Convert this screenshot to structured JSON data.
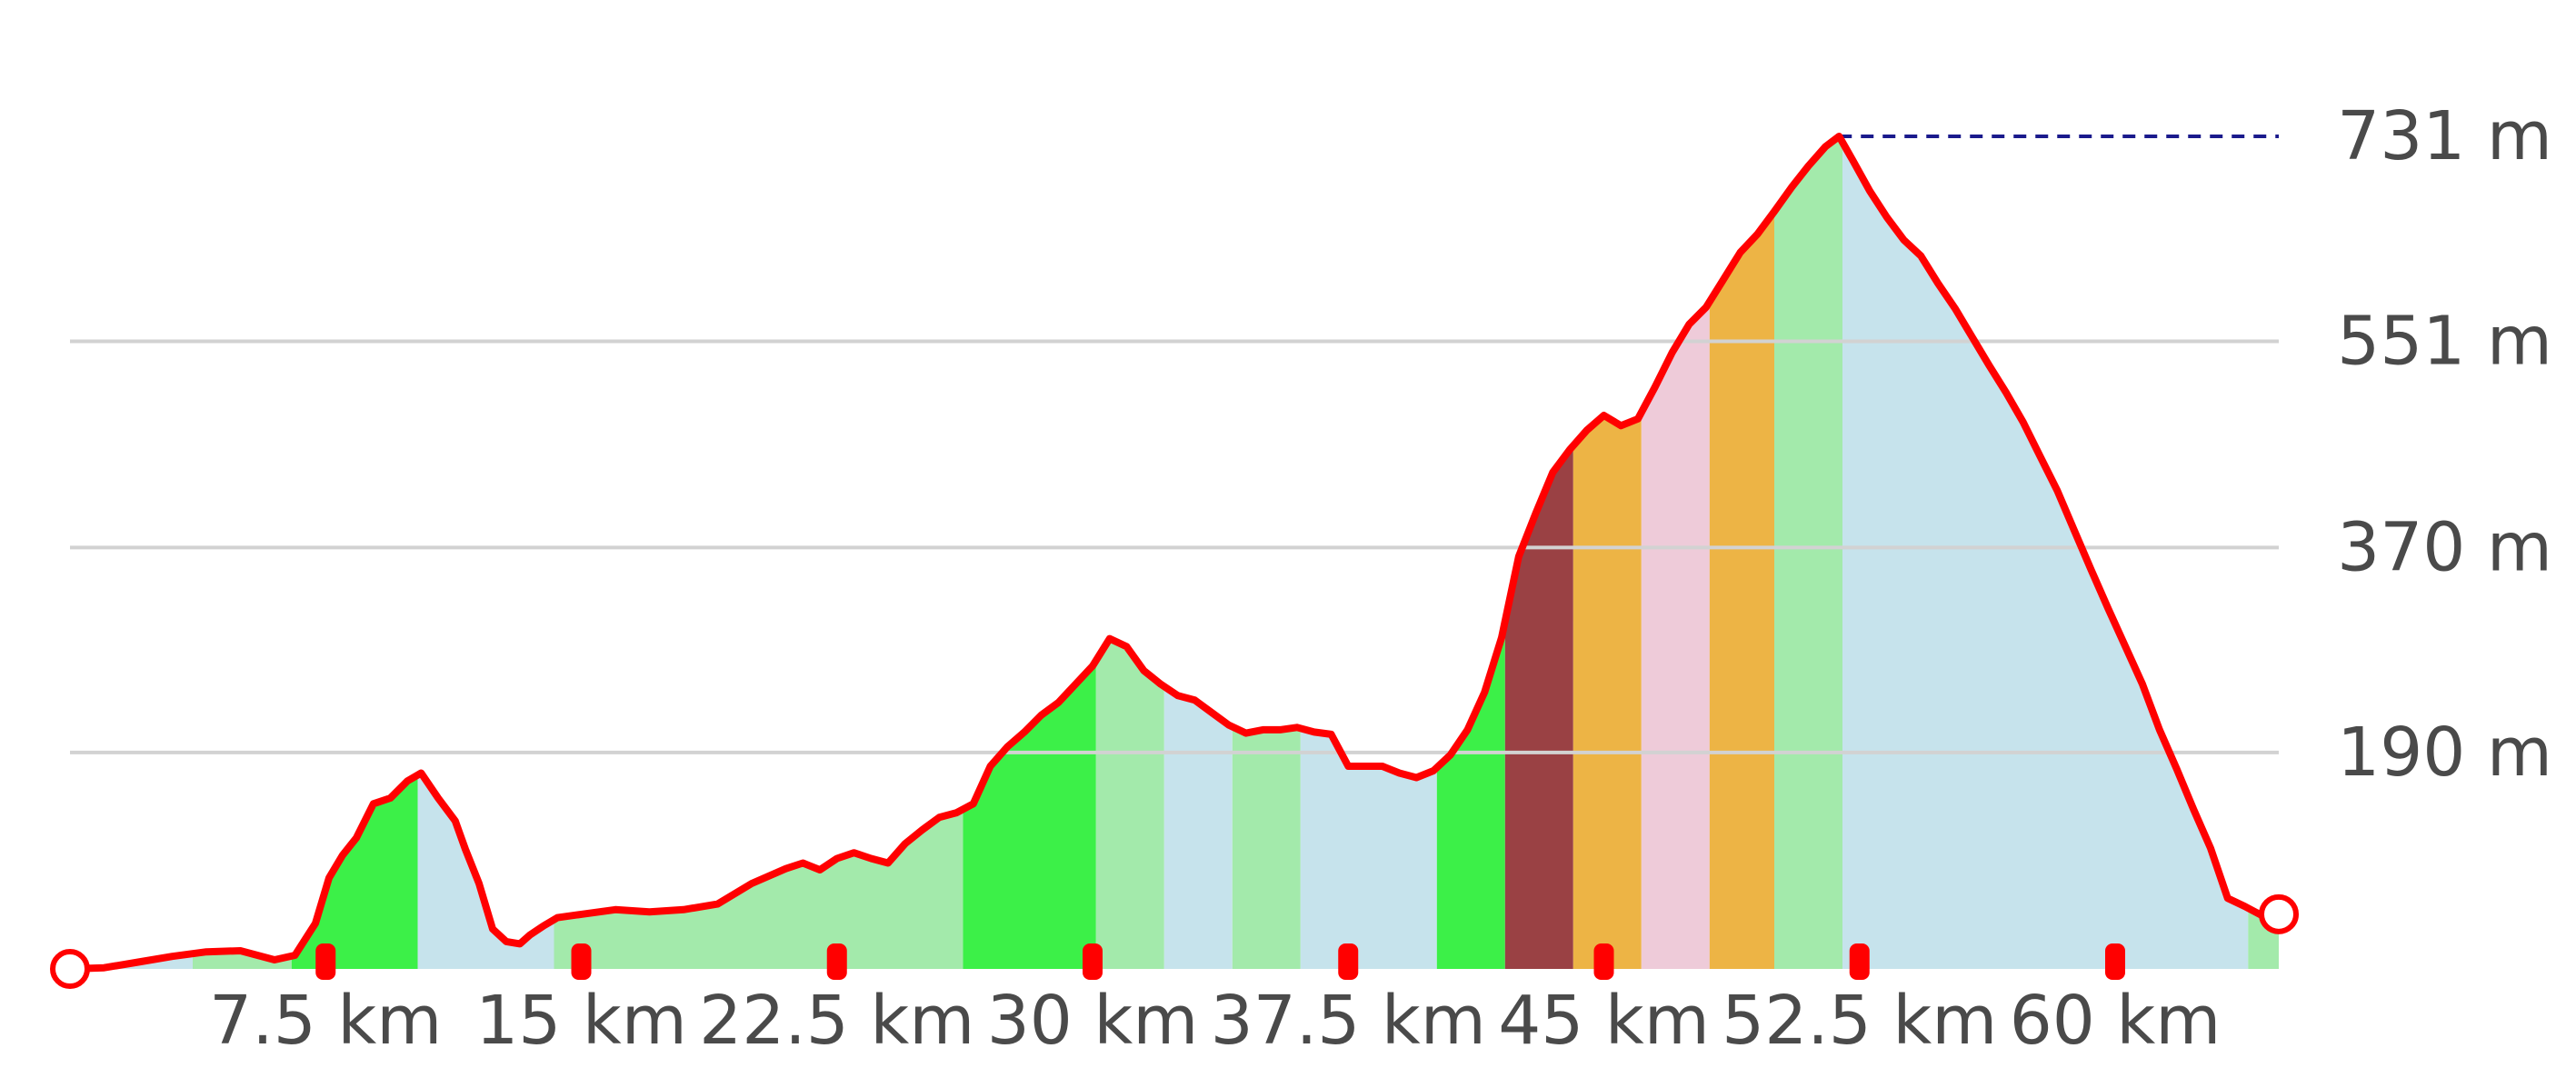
{
  "chart_data": {
    "type": "area",
    "xlabel": "",
    "ylabel": "",
    "x_unit": "km",
    "y_unit": "m",
    "xlim": [
      0,
      64.8
    ],
    "ylim": [
      0,
      731
    ],
    "x_ticks": [
      {
        "value": 7.5,
        "label": "7.5 km"
      },
      {
        "value": 15,
        "label": "15 km"
      },
      {
        "value": 22.5,
        "label": "22.5 km"
      },
      {
        "value": 30,
        "label": "30 km"
      },
      {
        "value": 37.5,
        "label": "37.5 km"
      },
      {
        "value": 45,
        "label": "45 km"
      },
      {
        "value": 52.5,
        "label": "52.5 km"
      },
      {
        "value": 60,
        "label": "60 km"
      }
    ],
    "y_ticks": [
      {
        "value": 190,
        "label": "190 m"
      },
      {
        "value": 370,
        "label": "370 m"
      },
      {
        "value": 551,
        "label": "551 m"
      },
      {
        "value": 731,
        "label": "731 m"
      }
    ],
    "max_elevation": {
      "value": 731,
      "label": "731 m",
      "distance": 51.9
    },
    "grid": true,
    "start_marker": {
      "distance": 0,
      "elevation": 0
    },
    "end_marker": {
      "distance": 64.8,
      "elevation": 48
    },
    "segment_colors": {
      "descent": "#c6e3ec",
      "gentle_climb": "#a3eaab",
      "moderate_climb": "#3cf048",
      "steep_climb": "#edb445",
      "very_steep_climb": "#9a4144",
      "pink": "#eecbd9"
    },
    "segments": [
      {
        "from": 0,
        "to": 3.6,
        "class": "descent"
      },
      {
        "from": 3.6,
        "to": 6.5,
        "class": "gentle_climb"
      },
      {
        "from": 6.5,
        "to": 10.2,
        "class": "moderate_climb"
      },
      {
        "from": 10.2,
        "to": 14.2,
        "class": "descent"
      },
      {
        "from": 14.2,
        "to": 26.2,
        "class": "gentle_climb"
      },
      {
        "from": 26.2,
        "to": 30.1,
        "class": "moderate_climb"
      },
      {
        "from": 30.1,
        "to": 32.1,
        "class": "gentle_climb"
      },
      {
        "from": 32.1,
        "to": 34.1,
        "class": "descent"
      },
      {
        "from": 34.1,
        "to": 36.1,
        "class": "gentle_climb"
      },
      {
        "from": 36.1,
        "to": 40.1,
        "class": "descent"
      },
      {
        "from": 40.1,
        "to": 42.1,
        "class": "moderate_climb"
      },
      {
        "from": 42.1,
        "to": 44.1,
        "class": "very_steep_climb"
      },
      {
        "from": 44.1,
        "to": 46.1,
        "class": "steep_climb"
      },
      {
        "from": 46.1,
        "to": 48.1,
        "class": "pink"
      },
      {
        "from": 48.1,
        "to": 50.0,
        "class": "steep_climb"
      },
      {
        "from": 50.0,
        "to": 52.0,
        "class": "gentle_climb"
      },
      {
        "from": 52.0,
        "to": 63.9,
        "class": "descent"
      },
      {
        "from": 63.9,
        "to": 64.8,
        "class": "gentle_climb"
      }
    ],
    "km_markers": [
      7.5,
      15,
      22.5,
      30,
      37.5,
      45,
      52.5,
      60
    ],
    "series": [
      {
        "x": [
          0,
          1.0,
          2.0,
          3.0,
          4.0,
          5.0,
          6.0,
          6.6,
          7.2,
          7.6,
          8.0,
          8.4,
          8.9,
          9.4,
          9.9,
          10.3,
          10.8,
          11.3,
          11.6,
          12.0,
          12.4,
          12.8,
          13.2,
          13.5,
          13.9,
          14.3,
          15.0,
          16.0,
          17.0,
          18.0,
          19.0,
          20.0,
          21.0,
          21.5,
          22.0,
          22.5,
          23.0,
          23.5,
          24.0,
          24.5,
          25.0,
          25.5,
          26.0,
          26.5,
          27.0,
          27.5,
          28.0,
          28.5,
          29.0,
          29.5,
          30.0,
          30.5,
          31.0,
          31.5,
          32.0,
          32.5,
          33.0,
          33.5,
          34.0,
          34.5,
          35.0,
          35.5,
          36.0,
          36.5,
          37.0,
          37.5,
          38.0,
          38.5,
          39.0,
          39.5,
          40.0,
          40.5,
          41.0,
          41.5,
          42.0,
          42.5,
          43.0,
          43.5,
          44.0,
          44.5,
          45.0,
          45.5,
          46.0,
          46.5,
          47.0,
          47.5,
          48.0,
          48.5,
          49.0,
          49.5,
          50.0,
          50.5,
          51.0,
          51.5,
          51.9,
          52.3,
          52.8,
          53.3,
          53.8,
          54.3,
          54.8,
          55.3,
          55.8,
          56.3,
          56.8,
          57.3,
          57.8,
          58.3,
          58.8,
          59.3,
          59.8,
          60.3,
          60.8,
          61.3,
          61.8,
          62.3,
          62.8,
          63.3,
          63.8,
          64.3,
          64.8
        ],
        "y": [
          0,
          1,
          6,
          11,
          15,
          16,
          8,
          12,
          40,
          80,
          100,
          115,
          145,
          150,
          165,
          172,
          150,
          130,
          105,
          75,
          35,
          24,
          22,
          30,
          38,
          45,
          48,
          52,
          50,
          52,
          57,
          75,
          88,
          93,
          87,
          97,
          102,
          97,
          93,
          110,
          122,
          133,
          137,
          145,
          178,
          195,
          208,
          223,
          234,
          250,
          266,
          290,
          283,
          262,
          250,
          240,
          236,
          225,
          214,
          207,
          210,
          210,
          212,
          208,
          206,
          178,
          178,
          178,
          172,
          168,
          174,
          188,
          210,
          243,
          291,
          362,
          400,
          436,
          456,
          473,
          486,
          477,
          483,
          511,
          541,
          566,
          581,
          605,
          629,
          645,
          665,
          686,
          705,
          722,
          731,
          710,
          683,
          660,
          640,
          626,
          602,
          580,
          555,
          530,
          506,
          480,
          450,
          420,
          385,
          350,
          316,
          283,
          250,
          210,
          176,
          140,
          106,
          62,
          55,
          47,
          48
        ],
        "color": "#ff0000"
      }
    ]
  }
}
